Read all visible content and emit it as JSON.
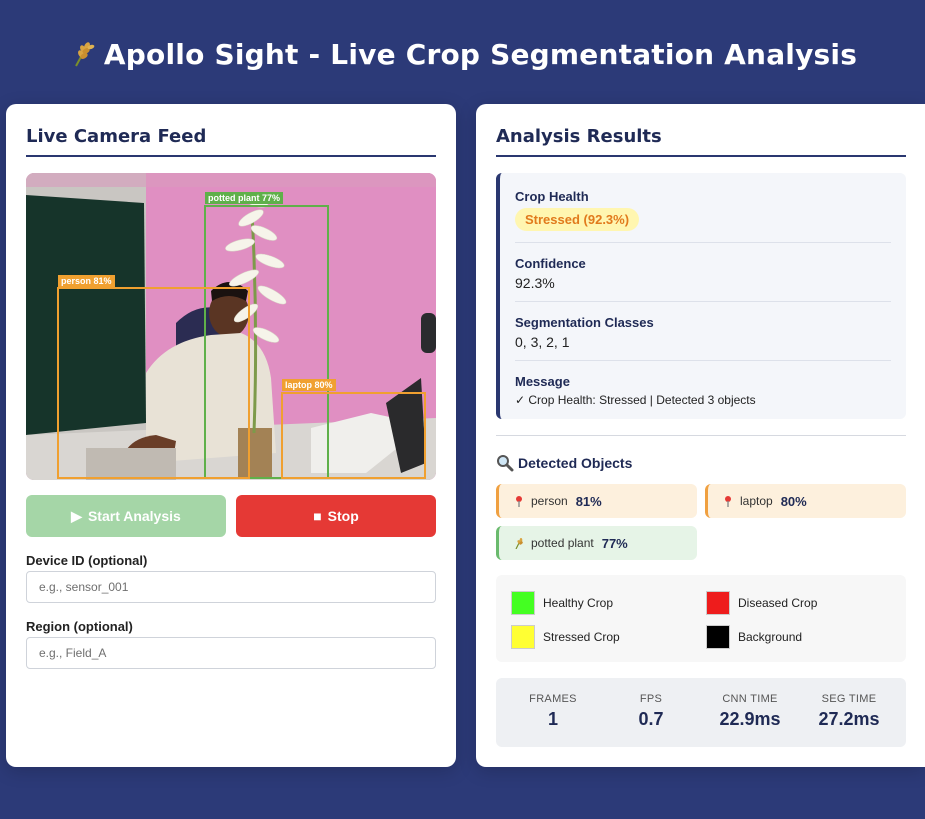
{
  "header": {
    "title": "Apollo Sight - Live Crop Segmentation Analysis"
  },
  "camera_panel": {
    "title": "Live Camera Feed",
    "detections": [
      {
        "label": "potted plant 77%",
        "color": "#5fb04a"
      },
      {
        "label": "person 81%",
        "color": "#f0a030"
      },
      {
        "label": "laptop 80%",
        "color": "#f0a030"
      }
    ],
    "start_button": "Start Analysis",
    "stop_button": "Stop",
    "device_id_label": "Device ID (optional)",
    "device_id_placeholder": "e.g., sensor_001",
    "region_label": "Region (optional)",
    "region_placeholder": "e.g., Field_A"
  },
  "results_panel": {
    "title": "Analysis Results",
    "crop_health_label": "Crop Health",
    "crop_health_value": "Stressed (92.3%)",
    "confidence_label": "Confidence",
    "confidence_value": "92.3%",
    "segmentation_label": "Segmentation Classes",
    "segmentation_value": "0, 3, 2, 1",
    "message_label": "Message",
    "message_value": "✓ Crop Health: Stressed | Detected 3 objects",
    "detected_title": "Detected Objects",
    "objects": [
      {
        "name": "person",
        "pct": "81%",
        "icon": "pin-icon"
      },
      {
        "name": "laptop",
        "pct": "80%",
        "icon": "pin-icon"
      },
      {
        "name": "potted plant",
        "pct": "77%",
        "icon": "wheat-icon"
      }
    ],
    "legend": [
      {
        "label": "Healthy Crop",
        "color": "#44ff22"
      },
      {
        "label": "Diseased Crop",
        "color": "#ee1c1c"
      },
      {
        "label": "Stressed Crop",
        "color": "#ffff33"
      },
      {
        "label": "Background",
        "color": "#000000"
      }
    ],
    "stats": [
      {
        "label": "FRAMES",
        "value": "1"
      },
      {
        "label": "FPS",
        "value": "0.7"
      },
      {
        "label": "CNN TIME",
        "value": "22.9ms"
      },
      {
        "label": "SEG TIME",
        "value": "27.2ms"
      }
    ]
  }
}
